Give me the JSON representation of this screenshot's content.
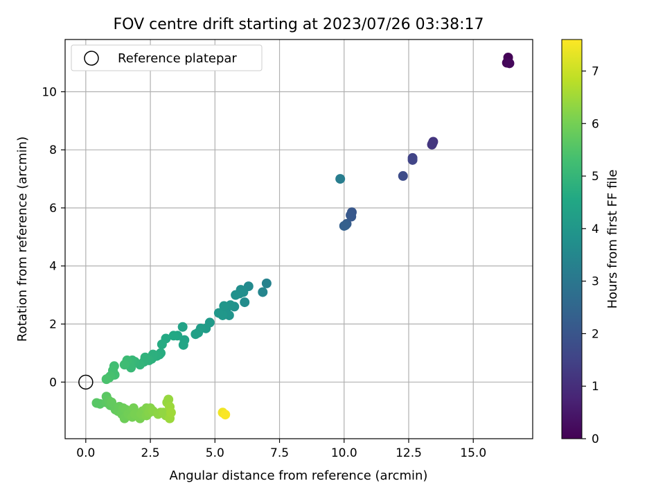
{
  "chart_data": {
    "type": "scatter",
    "title": "FOV centre drift starting at 2023/07/26 03:38:17",
    "xlabel": "Angular distance from reference (arcmin)",
    "ylabel": "Rotation from reference (arcmin)",
    "xlim": [
      -0.8,
      17.3
    ],
    "ylim": [
      -1.95,
      11.8
    ],
    "xticks": [
      0.0,
      2.5,
      5.0,
      7.5,
      10.0,
      12.5,
      15.0
    ],
    "xtick_labels": [
      "0.0",
      "2.5",
      "5.0",
      "7.5",
      "10.0",
      "12.5",
      "15.0"
    ],
    "yticks": [
      0,
      2,
      4,
      6,
      8,
      10
    ],
    "ytick_labels": [
      "0",
      "2",
      "4",
      "6",
      "8",
      "10"
    ],
    "grid": true,
    "legend": {
      "position": "top-left",
      "entries": [
        {
          "label": "Reference platepar",
          "marker": "open-circle"
        }
      ]
    },
    "reference_point": {
      "x": 0.0,
      "y": 0.0
    },
    "colorbar": {
      "label": "Hours from first FF file",
      "range": [
        0,
        7.6
      ],
      "ticks": [
        0,
        1,
        2,
        3,
        4,
        5,
        6,
        7
      ],
      "tick_labels": [
        "0",
        "1",
        "2",
        "3",
        "4",
        "5",
        "6",
        "7"
      ],
      "colormap": "viridis",
      "colors": [
        "#440154",
        "#482475",
        "#414487",
        "#355f8d",
        "#2a788e",
        "#21918c",
        "#22a884",
        "#44bf70",
        "#7ad151",
        "#bddf26",
        "#fde725"
      ]
    },
    "points": [
      {
        "x": 16.35,
        "y": 11.18,
        "c": 0.05
      },
      {
        "x": 16.3,
        "y": 11.0,
        "c": 0.1
      },
      {
        "x": 16.4,
        "y": 10.98,
        "c": 0.15
      },
      {
        "x": 13.45,
        "y": 8.28,
        "c": 1.15
      },
      {
        "x": 13.4,
        "y": 8.18,
        "c": 1.2
      },
      {
        "x": 13.42,
        "y": 8.22,
        "c": 1.2
      },
      {
        "x": 12.65,
        "y": 7.72,
        "c": 1.5
      },
      {
        "x": 12.65,
        "y": 7.65,
        "c": 1.55
      },
      {
        "x": 12.28,
        "y": 7.1,
        "c": 1.75
      },
      {
        "x": 10.3,
        "y": 5.85,
        "c": 2.05
      },
      {
        "x": 10.28,
        "y": 5.7,
        "c": 2.1
      },
      {
        "x": 10.25,
        "y": 5.75,
        "c": 2.1
      },
      {
        "x": 10.1,
        "y": 5.45,
        "c": 2.2
      },
      {
        "x": 10.0,
        "y": 5.38,
        "c": 2.3
      },
      {
        "x": 10.05,
        "y": 5.4,
        "c": 2.3
      },
      {
        "x": 9.85,
        "y": 7.0,
        "c": 3.2
      },
      {
        "x": 7.0,
        "y": 3.4,
        "c": 3.35
      },
      {
        "x": 6.85,
        "y": 3.1,
        "c": 3.45
      },
      {
        "x": 6.3,
        "y": 3.3,
        "c": 3.6
      },
      {
        "x": 6.15,
        "y": 2.75,
        "c": 3.65
      },
      {
        "x": 6.1,
        "y": 3.1,
        "c": 3.7
      },
      {
        "x": 6.0,
        "y": 3.18,
        "c": 3.7
      },
      {
        "x": 5.95,
        "y": 3.05,
        "c": 3.75
      },
      {
        "x": 5.8,
        "y": 3.0,
        "c": 3.8
      },
      {
        "x": 5.75,
        "y": 2.6,
        "c": 3.8
      },
      {
        "x": 5.6,
        "y": 2.65,
        "c": 3.85
      },
      {
        "x": 5.55,
        "y": 2.3,
        "c": 3.9
      },
      {
        "x": 5.45,
        "y": 2.55,
        "c": 3.9
      },
      {
        "x": 5.35,
        "y": 2.62,
        "c": 3.95
      },
      {
        "x": 5.3,
        "y": 2.3,
        "c": 4.0
      },
      {
        "x": 5.15,
        "y": 2.38,
        "c": 4.0
      },
      {
        "x": 4.8,
        "y": 2.05,
        "c": 4.1
      },
      {
        "x": 4.65,
        "y": 1.85,
        "c": 4.15
      },
      {
        "x": 4.45,
        "y": 1.85,
        "c": 4.2
      },
      {
        "x": 4.35,
        "y": 1.7,
        "c": 4.25
      },
      {
        "x": 4.25,
        "y": 1.65,
        "c": 4.3
      },
      {
        "x": 3.75,
        "y": 1.9,
        "c": 4.35
      },
      {
        "x": 3.82,
        "y": 1.45,
        "c": 4.4
      },
      {
        "x": 3.78,
        "y": 1.28,
        "c": 4.45
      },
      {
        "x": 3.55,
        "y": 1.6,
        "c": 4.5
      },
      {
        "x": 3.4,
        "y": 1.6,
        "c": 4.55
      },
      {
        "x": 3.1,
        "y": 1.5,
        "c": 4.6
      },
      {
        "x": 2.95,
        "y": 1.3,
        "c": 4.65
      },
      {
        "x": 2.9,
        "y": 1.0,
        "c": 4.7
      },
      {
        "x": 2.85,
        "y": 0.95,
        "c": 4.7
      },
      {
        "x": 2.75,
        "y": 0.9,
        "c": 4.75
      },
      {
        "x": 2.6,
        "y": 0.95,
        "c": 4.8
      },
      {
        "x": 2.55,
        "y": 0.8,
        "c": 4.8
      },
      {
        "x": 2.45,
        "y": 0.75,
        "c": 4.85
      },
      {
        "x": 2.3,
        "y": 0.85,
        "c": 4.9
      },
      {
        "x": 2.25,
        "y": 0.7,
        "c": 4.9
      },
      {
        "x": 2.1,
        "y": 0.6,
        "c": 4.95
      },
      {
        "x": 1.9,
        "y": 0.7,
        "c": 5.0
      },
      {
        "x": 1.8,
        "y": 0.75,
        "c": 5.05
      },
      {
        "x": 1.75,
        "y": 0.5,
        "c": 5.1
      },
      {
        "x": 1.7,
        "y": 0.65,
        "c": 5.1
      },
      {
        "x": 1.6,
        "y": 0.75,
        "c": 5.15
      },
      {
        "x": 1.5,
        "y": 0.6,
        "c": 5.2
      },
      {
        "x": 1.1,
        "y": 0.55,
        "c": 5.25
      },
      {
        "x": 1.12,
        "y": 0.25,
        "c": 5.3
      },
      {
        "x": 1.05,
        "y": 0.4,
        "c": 5.3
      },
      {
        "x": 0.95,
        "y": 0.2,
        "c": 5.35
      },
      {
        "x": 0.9,
        "y": 0.15,
        "c": 5.35
      },
      {
        "x": 0.8,
        "y": 0.1,
        "c": 5.4
      },
      {
        "x": 0.42,
        "y": -0.72,
        "c": 5.6
      },
      {
        "x": 0.55,
        "y": -0.75,
        "c": 5.6
      },
      {
        "x": 0.8,
        "y": -0.5,
        "c": 5.65
      },
      {
        "x": 0.8,
        "y": -0.7,
        "c": 5.65
      },
      {
        "x": 0.9,
        "y": -0.65,
        "c": 5.7
      },
      {
        "x": 0.95,
        "y": -0.8,
        "c": 5.7
      },
      {
        "x": 1.0,
        "y": -0.7,
        "c": 5.75
      },
      {
        "x": 1.15,
        "y": -0.95,
        "c": 5.75
      },
      {
        "x": 1.25,
        "y": -1.0,
        "c": 5.8
      },
      {
        "x": 1.3,
        "y": -0.85,
        "c": 5.8
      },
      {
        "x": 1.4,
        "y": -1.1,
        "c": 5.85
      },
      {
        "x": 1.45,
        "y": -0.9,
        "c": 5.85
      },
      {
        "x": 1.5,
        "y": -1.25,
        "c": 5.9
      },
      {
        "x": 1.55,
        "y": -0.95,
        "c": 5.9
      },
      {
        "x": 1.65,
        "y": -1.1,
        "c": 5.95
      },
      {
        "x": 1.75,
        "y": -1.0,
        "c": 5.95
      },
      {
        "x": 1.8,
        "y": -1.2,
        "c": 6.0
      },
      {
        "x": 1.85,
        "y": -0.9,
        "c": 6.0
      },
      {
        "x": 1.9,
        "y": -1.1,
        "c": 6.05
      },
      {
        "x": 2.1,
        "y": -1.25,
        "c": 6.05
      },
      {
        "x": 2.15,
        "y": -1.1,
        "c": 6.1
      },
      {
        "x": 2.2,
        "y": -1.0,
        "c": 6.1
      },
      {
        "x": 2.35,
        "y": -0.9,
        "c": 6.15
      },
      {
        "x": 2.35,
        "y": -1.15,
        "c": 6.15
      },
      {
        "x": 2.45,
        "y": -1.05,
        "c": 6.2
      },
      {
        "x": 2.5,
        "y": -0.9,
        "c": 6.2
      },
      {
        "x": 2.6,
        "y": -1.0,
        "c": 6.25
      },
      {
        "x": 2.8,
        "y": -1.1,
        "c": 6.3
      },
      {
        "x": 2.9,
        "y": -1.05,
        "c": 6.3
      },
      {
        "x": 3.0,
        "y": -1.05,
        "c": 6.35
      },
      {
        "x": 3.1,
        "y": -1.15,
        "c": 6.35
      },
      {
        "x": 3.15,
        "y": -0.7,
        "c": 6.4
      },
      {
        "x": 3.2,
        "y": -0.6,
        "c": 6.4
      },
      {
        "x": 3.25,
        "y": -0.85,
        "c": 6.45
      },
      {
        "x": 3.25,
        "y": -1.25,
        "c": 6.45
      },
      {
        "x": 3.3,
        "y": -1.05,
        "c": 6.5
      },
      {
        "x": 5.3,
        "y": -1.05,
        "c": 7.45
      },
      {
        "x": 5.4,
        "y": -1.12,
        "c": 7.55
      }
    ]
  }
}
